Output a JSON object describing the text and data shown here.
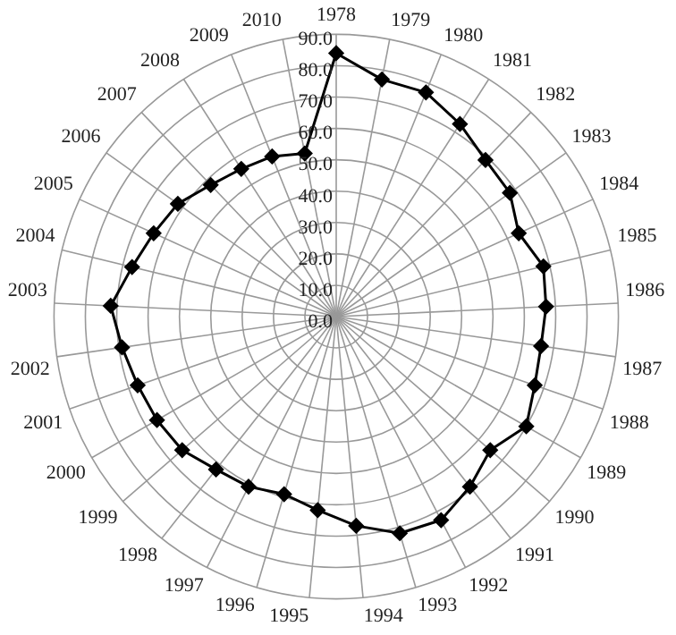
{
  "chart_data": {
    "type": "radar",
    "categories": [
      "1978",
      "1979",
      "1980",
      "1981",
      "1982",
      "1983",
      "1984",
      "1985",
      "1986",
      "1987",
      "1988",
      "1989",
      "1990",
      "1991",
      "1992",
      "1993",
      "1994",
      "1995",
      "1996",
      "1997",
      "1998",
      "1999",
      "2000",
      "2001",
      "2002",
      "2003",
      "2004",
      "2005",
      "2006",
      "2007",
      "2008",
      "2009",
      "2010"
    ],
    "series": [
      {
        "color": "#000000",
        "values": [
          84,
          77,
          77,
          73,
          69,
          68,
          64,
          68,
          67,
          66,
          67,
          70,
          65,
          69,
          73,
          72,
          67,
          62,
          59,
          61,
          62,
          65,
          66,
          67,
          69,
          72,
          67,
          64,
          62,
          58,
          56,
          55,
          53
        ]
      }
    ],
    "ylim": [
      0,
      90
    ],
    "yticks": [
      {
        "value": 0,
        "label": "0.0"
      },
      {
        "value": 10,
        "label": "10.0"
      },
      {
        "value": 20,
        "label": "20.0"
      },
      {
        "value": 30,
        "label": "30.0"
      },
      {
        "value": 40,
        "label": "40.0"
      },
      {
        "value": 50,
        "label": "50.0"
      },
      {
        "value": 60,
        "label": "60.0"
      },
      {
        "value": 70,
        "label": "70.0"
      },
      {
        "value": 80,
        "label": "80.0"
      },
      {
        "value": 90,
        "label": "90.0"
      }
    ],
    "grid": true,
    "legend": false,
    "marker": "diamond",
    "line_style": "solid"
  }
}
